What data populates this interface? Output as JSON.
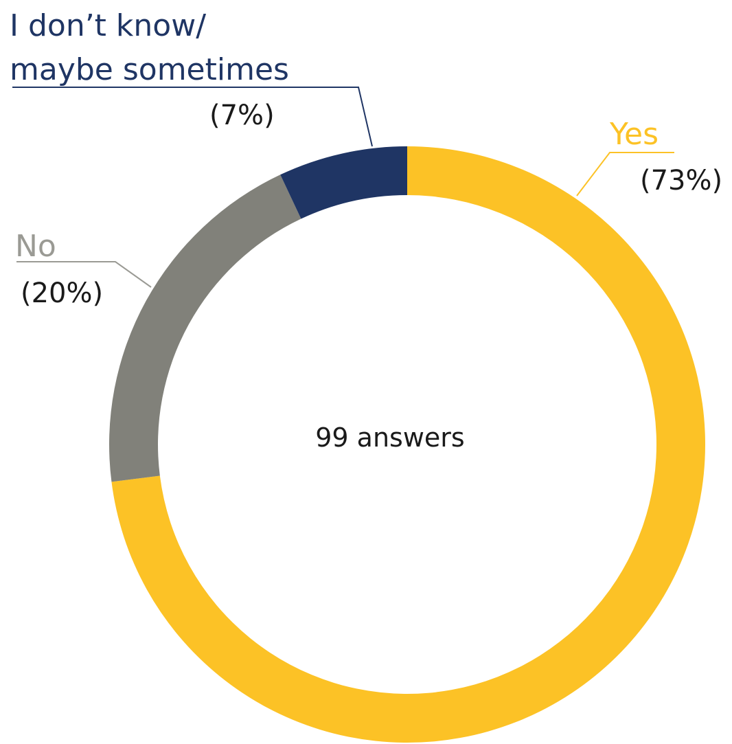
{
  "chart_data": {
    "type": "pie",
    "style": "donut",
    "center_text": "99 answers",
    "slices": [
      {
        "label": "Yes",
        "value": 73,
        "value_text": "(73%)",
        "color": "#FCC226"
      },
      {
        "label": "No",
        "value": 20,
        "value_text": "(20%)",
        "color": "#81817A"
      },
      {
        "label_lines": [
          "I don’t know/",
          "maybe sometimes"
        ],
        "value": 7,
        "value_text": "(7%)",
        "color": "#1F3564"
      }
    ],
    "start": "12 o'clock",
    "direction": "clockwise"
  }
}
